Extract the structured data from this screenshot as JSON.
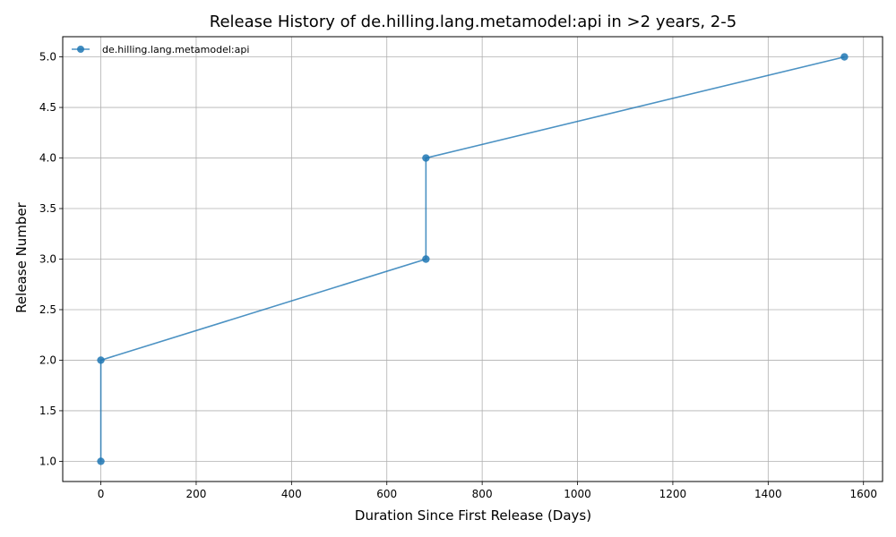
{
  "chart_data": {
    "type": "line",
    "title": "Release History of de.hilling.lang.metamodel:api in >2 years, 2-5",
    "xlabel": "Duration Since First Release (Days)",
    "ylabel": "Release Number",
    "xlim": [
      -80,
      1640
    ],
    "ylim": [
      0.8,
      5.2
    ],
    "x_ticks": [
      0,
      200,
      400,
      600,
      800,
      1000,
      1200,
      1400,
      1600
    ],
    "x_tick_labels": [
      "0",
      "200",
      "400",
      "600",
      "800",
      "1000",
      "1200",
      "1400",
      "1600"
    ],
    "y_ticks": [
      1.0,
      1.5,
      2.0,
      2.5,
      3.0,
      3.5,
      4.0,
      4.5,
      5.0
    ],
    "y_tick_labels": [
      "1.0",
      "1.5",
      "2.0",
      "2.5",
      "3.0",
      "3.5",
      "4.0",
      "4.5",
      "5.0"
    ],
    "grid": true,
    "legend_position": "top-left",
    "series": [
      {
        "name": "de.hilling.lang.metamodel:api",
        "color": "#1f77b4",
        "marker": "circle",
        "x": [
          0,
          0,
          682,
          682,
          1560
        ],
        "y": [
          1,
          2,
          3,
          4,
          5
        ]
      }
    ]
  }
}
